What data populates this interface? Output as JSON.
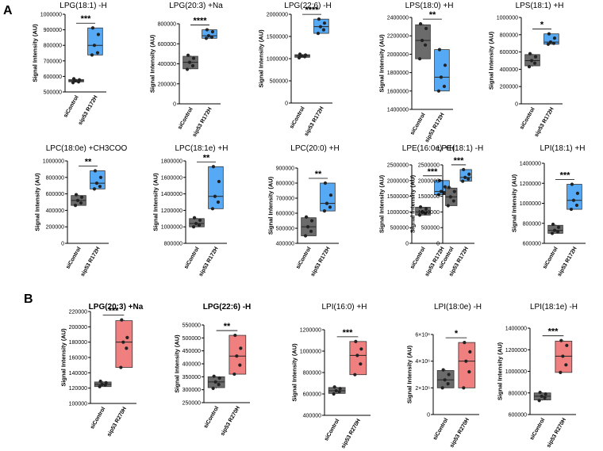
{
  "panel_labels": [
    "A",
    "B"
  ],
  "y_axis_label": "Signal Intensity (AU)",
  "colors": {
    "control": "#6b6b6b",
    "r172h": "#56a9f5",
    "r270h": "#f07f7f",
    "point": "#222222"
  },
  "chart_data": [
    {
      "type": "box",
      "panel": "A",
      "title": "LPG(18:1) -H",
      "bold": false,
      "categories": [
        "siControl",
        "sip53 R172H"
      ],
      "ylim": [
        500000,
        1000000
      ],
      "ticks": [
        "500000",
        "600000",
        "700000",
        "800000",
        "900000",
        "1000000"
      ],
      "significance": "***",
      "series": [
        {
          "name": "siControl",
          "min": 560000,
          "q1": 565000,
          "median": 572000,
          "q3": 580000,
          "max": 585000,
          "points": [
            560000,
            565000,
            572000,
            578000,
            585000
          ]
        },
        {
          "name": "sip53 R172H",
          "min": 738000,
          "q1": 738000,
          "median": 800000,
          "q3": 912000,
          "max": 912000,
          "points": [
            738000,
            752000,
            800000,
            870000,
            912000
          ]
        }
      ]
    },
    {
      "type": "box",
      "panel": "A",
      "title": "LPG(20:3) +Na",
      "bold": false,
      "categories": [
        "siControl",
        "sip53 R172H"
      ],
      "ylim": [
        0,
        800000
      ],
      "ticks": [
        "0",
        "200000",
        "400000",
        "600000",
        "800000"
      ],
      "significance": "****",
      "series": [
        {
          "name": "siControl",
          "min": 345000,
          "q1": 350000,
          "median": 415000,
          "q3": 475000,
          "max": 485000,
          "points": [
            345000,
            380000,
            415000,
            455000,
            485000
          ]
        },
        {
          "name": "sip53 R172H",
          "min": 655000,
          "q1": 655000,
          "median": 680000,
          "q3": 740000,
          "max": 740000,
          "points": [
            655000,
            665000,
            680000,
            720000,
            740000
          ]
        }
      ]
    },
    {
      "type": "box",
      "panel": "A",
      "title": "LPG(22:6) -H",
      "bold": false,
      "categories": [
        "siControl",
        "sip53 R172H"
      ],
      "ylim": [
        0,
        2000000
      ],
      "ticks": [
        "0",
        "500000",
        "1000000",
        "1500000",
        "2000000"
      ],
      "significance": "****",
      "series": [
        {
          "name": "siControl",
          "min": 1020000,
          "q1": 1030000,
          "median": 1060000,
          "q3": 1090000,
          "max": 1100000,
          "points": [
            1020000,
            1045000,
            1060000,
            1080000,
            1100000
          ]
        },
        {
          "name": "sip53 R172H",
          "min": 1570000,
          "q1": 1570000,
          "median": 1720000,
          "q3": 1890000,
          "max": 1890000,
          "points": [
            1570000,
            1650000,
            1720000,
            1800000,
            1890000
          ]
        }
      ]
    },
    {
      "type": "box",
      "panel": "A",
      "title": "LPS(18:0) +H",
      "bold": false,
      "categories": [
        "siControl",
        "sip53 R172H"
      ],
      "ylim": [
        1400000,
        2400000
      ],
      "ticks": [
        "1400000",
        "1600000",
        "1800000",
        "2000000",
        "2200000",
        "2400000"
      ],
      "significance": "**",
      "series": [
        {
          "name": "siControl",
          "min": 1950000,
          "q1": 1950000,
          "median": 2150000,
          "q3": 2320000,
          "max": 2330000,
          "points": [
            1950000,
            2100000,
            2150000,
            2280000,
            2330000
          ]
        },
        {
          "name": "sip53 R172H",
          "min": 1600000,
          "q1": 1600000,
          "median": 1750000,
          "q3": 2050000,
          "max": 2050000,
          "points": [
            1600000,
            1650000,
            1750000,
            1880000,
            2050000
          ]
        }
      ]
    },
    {
      "type": "box",
      "panel": "A",
      "title": "LPS(18:1) +H",
      "bold": false,
      "categories": [
        "siControl",
        "sip53 R172H"
      ],
      "ylim": [
        0,
        1000000
      ],
      "ticks": [
        "0",
        "200000",
        "400000",
        "600000",
        "800000",
        "1000000"
      ],
      "significance": "*",
      "series": [
        {
          "name": "siControl",
          "min": 430000,
          "q1": 440000,
          "median": 500000,
          "q3": 570000,
          "max": 580000,
          "points": [
            430000,
            470000,
            500000,
            545000,
            580000
          ]
        },
        {
          "name": "sip53 R172H",
          "min": 690000,
          "q1": 690000,
          "median": 715000,
          "q3": 810000,
          "max": 810000,
          "points": [
            690000,
            700000,
            715000,
            760000,
            810000
          ]
        }
      ]
    },
    {
      "type": "box",
      "panel": "A",
      "title": "LPC(18:0e) +CH3COO",
      "bold": false,
      "categories": [
        "siControl",
        "sip53 R172H"
      ],
      "ylim": [
        0,
        1000000
      ],
      "ticks": [
        "0",
        "200000",
        "400000",
        "600000",
        "800000",
        "1000000"
      ],
      "significance": "**",
      "series": [
        {
          "name": "siControl",
          "min": 460000,
          "q1": 460000,
          "median": 520000,
          "q3": 580000,
          "max": 590000,
          "points": [
            460000,
            490000,
            520000,
            560000,
            590000
          ]
        },
        {
          "name": "sip53 R172H",
          "min": 660000,
          "q1": 660000,
          "median": 730000,
          "q3": 880000,
          "max": 880000,
          "points": [
            660000,
            690000,
            730000,
            800000,
            880000
          ]
        }
      ]
    },
    {
      "type": "box",
      "panel": "A",
      "title": "LPC(18:1e) +H",
      "bold": false,
      "categories": [
        "siControl",
        "sip53 R172H"
      ],
      "ylim": [
        800000,
        1800000
      ],
      "ticks": [
        "800000",
        "1000000",
        "1200000",
        "1400000",
        "1600000",
        "1800000"
      ],
      "significance": "**",
      "series": [
        {
          "name": "siControl",
          "min": 1000000,
          "q1": 1000000,
          "median": 1040000,
          "q3": 1100000,
          "max": 1110000,
          "points": [
            1000000,
            1020000,
            1040000,
            1080000,
            1110000
          ]
        },
        {
          "name": "sip53 R172H",
          "min": 1220000,
          "q1": 1220000,
          "median": 1370000,
          "q3": 1730000,
          "max": 1730000,
          "points": [
            1220000,
            1300000,
            1370000,
            1550000,
            1730000
          ]
        }
      ]
    },
    {
      "type": "box",
      "panel": "A",
      "title": "LPC(20:0) +H",
      "bold": false,
      "categories": [
        "siControl",
        "sip53 R172H"
      ],
      "ylim": [
        400000,
        900000
      ],
      "ticks": [
        "400000",
        "500000",
        "600000",
        "700000",
        "800000",
        "900000"
      ],
      "significance": "**",
      "series": [
        {
          "name": "siControl",
          "min": 450000,
          "q1": 450000,
          "median": 510000,
          "q3": 570000,
          "max": 575000,
          "points": [
            450000,
            480000,
            510000,
            550000,
            575000
          ]
        },
        {
          "name": "sip53 R172H",
          "min": 615000,
          "q1": 615000,
          "median": 665000,
          "q3": 800000,
          "max": 800000,
          "points": [
            615000,
            640000,
            665000,
            720000,
            800000
          ]
        }
      ]
    },
    {
      "type": "box",
      "panel": "A",
      "title": "LPE(16:0e) +H",
      "bold": false,
      "categories": [
        "siControl",
        "sip53 R172H"
      ],
      "ylim": [
        0,
        2500000
      ],
      "ticks": [
        "0",
        "500000",
        "1000000",
        "1500000",
        "2000000",
        "2500000"
      ],
      "significance": "***",
      "series": [
        {
          "name": "siControl",
          "min": 900000,
          "q1": 900000,
          "median": 1000000,
          "q3": 1150000,
          "max": 1160000,
          "points": [
            900000,
            950000,
            1000000,
            1100000,
            1160000
          ]
        },
        {
          "name": "sip53 R172H",
          "min": 1550000,
          "q1": 1550000,
          "median": 1650000,
          "q3": 2000000,
          "max": 2000000,
          "points": [
            1550000,
            1600000,
            1650000,
            1800000,
            2000000
          ]
        }
      ]
    },
    {
      "type": "box",
      "panel": "A",
      "title": "LPE(18:1) -H",
      "bold": false,
      "categories": [
        "siControl",
        "sip53 R172H"
      ],
      "ylim": [
        0,
        2500000
      ],
      "ticks": [
        "0",
        "500000",
        "1000000",
        "1500000",
        "2000000",
        "2500000"
      ],
      "significance": "***",
      "series": [
        {
          "name": "siControl",
          "min": 1200000,
          "q1": 1200000,
          "median": 1480000,
          "q3": 1760000,
          "max": 1780000,
          "points": [
            1200000,
            1350000,
            1480000,
            1650000,
            1780000
          ]
        },
        {
          "name": "sip53 R172H",
          "min": 1980000,
          "q1": 1980000,
          "median": 2100000,
          "q3": 2350000,
          "max": 2350000,
          "points": [
            1980000,
            2050000,
            2100000,
            2200000,
            2350000
          ]
        }
      ]
    },
    {
      "type": "box",
      "panel": "A",
      "title": "LPI(18:1) +H",
      "bold": false,
      "categories": [
        "siControl",
        "sip53 R172H"
      ],
      "ylim": [
        600000,
        1400000
      ],
      "ticks": [
        "600000",
        "800000",
        "1000000",
        "1200000",
        "1400000"
      ],
      "significance": "***",
      "series": [
        {
          "name": "siControl",
          "min": 700000,
          "q1": 700000,
          "median": 730000,
          "q3": 780000,
          "max": 790000,
          "points": [
            700000,
            715000,
            730000,
            760000,
            790000
          ]
        },
        {
          "name": "sip53 R172H",
          "min": 940000,
          "q1": 940000,
          "median": 1030000,
          "q3": 1190000,
          "max": 1190000,
          "points": [
            940000,
            980000,
            1030000,
            1100000,
            1190000
          ]
        }
      ]
    },
    {
      "type": "box",
      "panel": "B",
      "title": "LPG(20:3) +Na",
      "bold": true,
      "categories": [
        "siControl",
        "sip53 R270H"
      ],
      "ylim": [
        100000,
        220000
      ],
      "ticks": [
        "100000",
        "120000",
        "140000",
        "160000",
        "180000",
        "200000",
        "220000"
      ],
      "significance": "***",
      "series": [
        {
          "name": "siControl",
          "min": 122000,
          "q1": 122000,
          "median": 125000,
          "q3": 128000,
          "max": 129000,
          "points": [
            122000,
            124000,
            125000,
            127000,
            129000
          ]
        },
        {
          "name": "sip53 R270H",
          "min": 147000,
          "q1": 147000,
          "median": 180000,
          "q3": 208000,
          "max": 209000,
          "points": [
            147000,
            172000,
            180000,
            186000,
            209000
          ]
        }
      ]
    },
    {
      "type": "box",
      "panel": "B",
      "title": "LPG(22:6) -H",
      "bold": true,
      "categories": [
        "siControl",
        "sip53 R270H"
      ],
      "ylim": [
        250000,
        550000
      ],
      "ticks": [
        "250000",
        "300000",
        "350000",
        "400000",
        "450000",
        "500000",
        "550000"
      ],
      "significance": "**",
      "series": [
        {
          "name": "siControl",
          "min": 305000,
          "q1": 308000,
          "median": 330000,
          "q3": 350000,
          "max": 352000,
          "points": [
            305000,
            320000,
            330000,
            345000,
            352000
          ]
        },
        {
          "name": "sip53 R270H",
          "min": 360000,
          "q1": 360000,
          "median": 430000,
          "q3": 510000,
          "max": 510000,
          "points": [
            360000,
            395000,
            430000,
            460000,
            510000
          ]
        }
      ]
    },
    {
      "type": "box",
      "panel": "B",
      "title": "LPI(16:0) +H",
      "bold": false,
      "categories": [
        "siControl",
        "sip53 R270H"
      ],
      "ylim": [
        400000,
        1200000
      ],
      "ticks": [
        "400000",
        "600000",
        "800000",
        "1000000",
        "1200000"
      ],
      "significance": "***",
      "series": [
        {
          "name": "siControl",
          "min": 600000,
          "q1": 605000,
          "median": 630000,
          "q3": 660000,
          "max": 665000,
          "points": [
            600000,
            620000,
            630000,
            650000,
            665000
          ]
        },
        {
          "name": "sip53 R270H",
          "min": 780000,
          "q1": 780000,
          "median": 960000,
          "q3": 1090000,
          "max": 1090000,
          "points": [
            780000,
            880000,
            960000,
            1020000,
            1090000
          ]
        }
      ]
    },
    {
      "type": "box",
      "panel": "B",
      "title": "LPI(18:0e) -H",
      "bold": false,
      "categories": [
        "siControl",
        "sip53 R270H"
      ],
      "ylim": [
        0,
        6000000
      ],
      "ticks": [
        "0",
        "2×10⁶",
        "4×10⁶",
        "6×10⁶"
      ],
      "significance": "*",
      "series": [
        {
          "name": "siControl",
          "min": 2000000,
          "q1": 2000000,
          "median": 2600000,
          "q3": 3300000,
          "max": 3350000,
          "points": [
            2000000,
            2300000,
            2600000,
            3000000,
            3350000
          ]
        },
        {
          "name": "sip53 R270H",
          "min": 2000000,
          "q1": 2000000,
          "median": 4000000,
          "q3": 5400000,
          "max": 5400000,
          "points": [
            2000000,
            3200000,
            4000000,
            4700000,
            5400000
          ]
        }
      ]
    },
    {
      "type": "box",
      "panel": "B",
      "title": "LPI(18:1e) -H",
      "bold": false,
      "categories": [
        "siControl",
        "sip53 R270H"
      ],
      "ylim": [
        600000,
        1400000
      ],
      "ticks": [
        "600000",
        "800000",
        "1000000",
        "1200000",
        "1400000"
      ],
      "significance": "***",
      "series": [
        {
          "name": "siControl",
          "min": 730000,
          "q1": 735000,
          "median": 770000,
          "q3": 800000,
          "max": 805000,
          "points": [
            730000,
            755000,
            770000,
            790000,
            805000
          ]
        },
        {
          "name": "sip53 R270H",
          "min": 990000,
          "q1": 990000,
          "median": 1140000,
          "q3": 1280000,
          "max": 1285000,
          "points": [
            990000,
            1060000,
            1140000,
            1240000,
            1285000
          ]
        }
      ]
    }
  ]
}
